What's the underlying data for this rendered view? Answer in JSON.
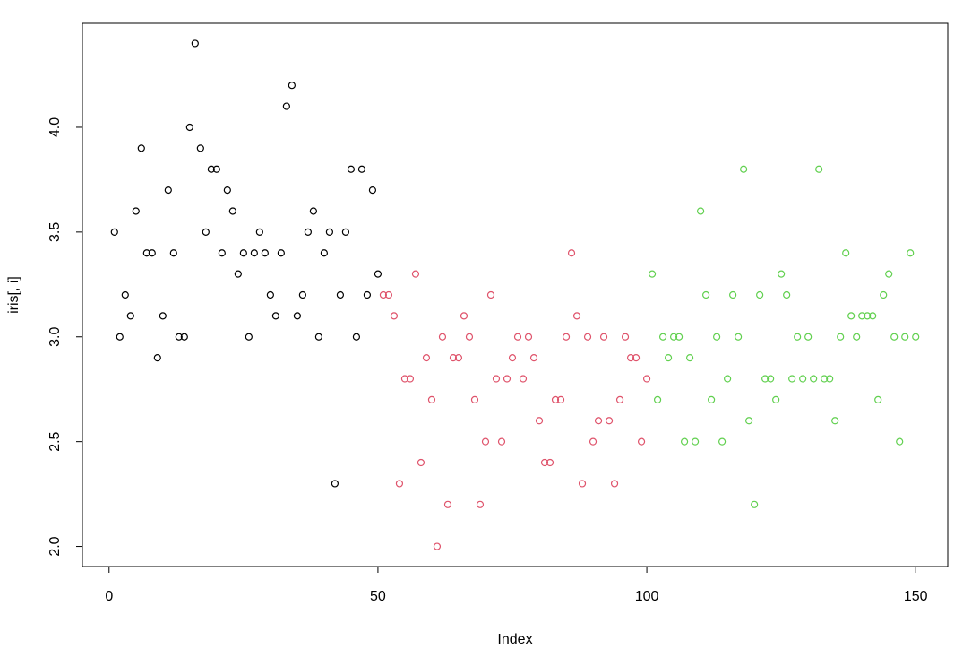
{
  "chart_data": {
    "type": "scatter",
    "x_label": "Index",
    "y_label": "iris[, i]",
    "xlim": [
      -4.96,
      155.96
    ],
    "ylim": [
      1.904,
      4.496
    ],
    "xticks": [
      0,
      50,
      100,
      150
    ],
    "yticks": [
      {
        "value": 2,
        "label": "2.0"
      },
      2.5,
      {
        "value": 3,
        "label": "3.0"
      },
      3.5,
      {
        "value": 4,
        "label": "4.0"
      }
    ],
    "series": [
      {
        "color": "#000000",
        "x": [
          1,
          2,
          3,
          4,
          5,
          6,
          7,
          8,
          9,
          10,
          11,
          12,
          13,
          14,
          15,
          16,
          17,
          18,
          19,
          20,
          21,
          22,
          23,
          24,
          25,
          26,
          27,
          28,
          29,
          30,
          31,
          32,
          33,
          34,
          35,
          36,
          37,
          38,
          39,
          40,
          41,
          42,
          43,
          44,
          45,
          46,
          47,
          48,
          49,
          50
        ],
        "values": [
          3.5,
          3.0,
          3.2,
          3.1,
          3.6,
          3.9,
          3.4,
          3.4,
          2.9,
          3.1,
          3.7,
          3.4,
          3.0,
          3.0,
          4.0,
          4.4,
          3.9,
          3.5,
          3.8,
          3.8,
          3.4,
          3.7,
          3.6,
          3.3,
          3.4,
          3.0,
          3.4,
          3.5,
          3.4,
          3.2,
          3.1,
          3.4,
          4.1,
          4.2,
          3.1,
          3.2,
          3.5,
          3.6,
          3.0,
          3.4,
          3.5,
          2.3,
          3.2,
          3.5,
          3.8,
          3.0,
          3.8,
          3.2,
          3.7,
          3.3
        ]
      },
      {
        "color": "#DF536B",
        "x": [
          51,
          52,
          53,
          54,
          55,
          56,
          57,
          58,
          59,
          60,
          61,
          62,
          63,
          64,
          65,
          66,
          67,
          68,
          69,
          70,
          71,
          72,
          73,
          74,
          75,
          76,
          77,
          78,
          79,
          80,
          81,
          82,
          83,
          84,
          85,
          86,
          87,
          88,
          89,
          90,
          91,
          92,
          93,
          94,
          95,
          96,
          97,
          98,
          99,
          100
        ],
        "values": [
          3.2,
          3.2,
          3.1,
          2.3,
          2.8,
          2.8,
          3.3,
          2.4,
          2.9,
          2.7,
          2.0,
          3.0,
          2.2,
          2.9,
          2.9,
          3.1,
          3.0,
          2.7,
          2.2,
          2.5,
          3.2,
          2.8,
          2.5,
          2.8,
          2.9,
          3.0,
          2.8,
          3.0,
          2.9,
          2.6,
          2.4,
          2.4,
          2.7,
          2.7,
          3.0,
          3.4,
          3.1,
          2.3,
          3.0,
          2.5,
          2.6,
          3.0,
          2.6,
          2.3,
          2.7,
          3.0,
          2.9,
          2.9,
          2.5,
          2.8
        ]
      },
      {
        "color": "#61D04F",
        "x": [
          101,
          102,
          103,
          104,
          105,
          106,
          107,
          108,
          109,
          110,
          111,
          112,
          113,
          114,
          115,
          116,
          117,
          118,
          119,
          120,
          121,
          122,
          123,
          124,
          125,
          126,
          127,
          128,
          129,
          130,
          131,
          132,
          133,
          134,
          135,
          136,
          137,
          138,
          139,
          140,
          141,
          142,
          143,
          144,
          145,
          146,
          147,
          148,
          149,
          150
        ],
        "values": [
          3.3,
          2.7,
          3.0,
          2.9,
          3.0,
          3.0,
          2.5,
          2.9,
          2.5,
          3.6,
          3.2,
          2.7,
          3.0,
          2.5,
          2.8,
          3.2,
          3.0,
          3.8,
          2.6,
          2.2,
          3.2,
          2.8,
          2.8,
          2.7,
          3.3,
          3.2,
          2.8,
          3.0,
          2.8,
          3.0,
          2.8,
          3.8,
          2.8,
          2.8,
          2.6,
          3.0,
          3.4,
          3.1,
          3.0,
          3.1,
          3.1,
          3.1,
          2.7,
          3.2,
          3.3,
          3.0,
          2.5,
          3.0,
          3.4,
          3.0
        ]
      }
    ]
  }
}
